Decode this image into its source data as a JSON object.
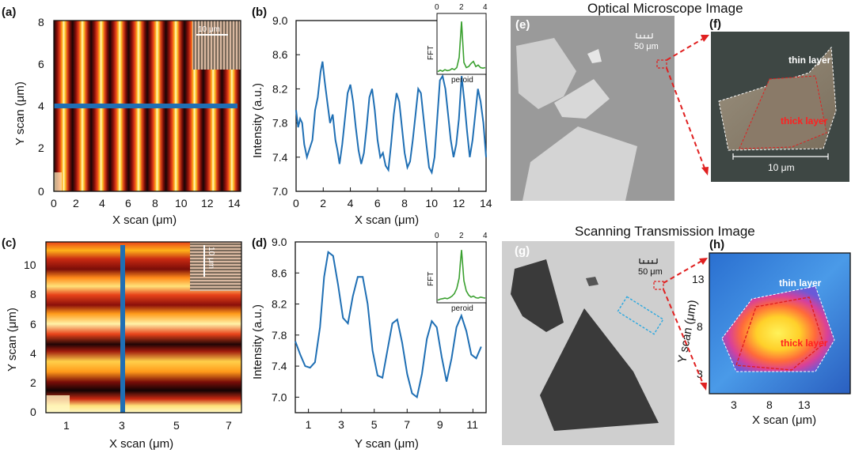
{
  "panels": {
    "a": {
      "label": "(a)",
      "xlabel": "X scan (μm)",
      "ylabel": "Y scan (μm)",
      "xticks": [
        "0",
        "2",
        "4",
        "6",
        "8",
        "10",
        "12",
        "14"
      ],
      "yticks": [
        "0",
        "2",
        "4",
        "6",
        "8"
      ],
      "inset_scale": "10 μm"
    },
    "c": {
      "label": "(c)",
      "xlabel": "X scan (μm)",
      "ylabel": "Y scan (μm)",
      "xticks": [
        "1",
        "3",
        "5",
        "7"
      ],
      "yticks": [
        "0",
        "2",
        "4",
        "6",
        "8",
        "10"
      ],
      "inset_scale": "10 μm"
    },
    "e": {
      "label": "(e)",
      "scale": "50 μm"
    },
    "f": {
      "label": "(f)",
      "thin": "thin layer",
      "thick": "thick layer",
      "scale": "10 μm"
    },
    "g": {
      "label": "(g)",
      "scale": "50 μm"
    },
    "h": {
      "label": "(h)",
      "thin": "thin layer",
      "thick": "thick layer",
      "xlabel": "X scan (μm)",
      "ylabel": "Y scan (μm)",
      "xticks": [
        "3",
        "8",
        "13"
      ],
      "yticks": [
        "3",
        "8",
        "13"
      ]
    }
  },
  "titles": {
    "optical": "Optical Microscope Image",
    "transmission": "Scanning Transmission Image"
  },
  "colors": {
    "line": "#1f6fb4",
    "fft": "#3aa02f",
    "marker": "#1f6fb4",
    "dash": "#e02020"
  },
  "chart_data": [
    {
      "id": "b",
      "label": "(b)",
      "type": "line",
      "xlabel": "X scan (μm)",
      "ylabel": "Intensity (a.u.)",
      "xlim": [
        0,
        14
      ],
      "ylim": [
        7.0,
        9.0
      ],
      "xticks": [
        0,
        2,
        4,
        6,
        8,
        10,
        12,
        14
      ],
      "yticks": [
        7.0,
        7.4,
        7.8,
        8.2,
        8.6,
        9.0
      ],
      "x": [
        0,
        0.15,
        0.3,
        0.45,
        0.6,
        0.8,
        1.0,
        1.2,
        1.4,
        1.6,
        1.8,
        1.95,
        2.1,
        2.3,
        2.5,
        2.7,
        2.9,
        3.05,
        3.2,
        3.4,
        3.6,
        3.8,
        4.0,
        4.2,
        4.4,
        4.6,
        4.8,
        5.0,
        5.2,
        5.4,
        5.6,
        5.8,
        6.0,
        6.2,
        6.4,
        6.6,
        6.8,
        7.0,
        7.2,
        7.4,
        7.6,
        7.8,
        8.0,
        8.2,
        8.4,
        8.6,
        8.8,
        9.0,
        9.2,
        9.4,
        9.6,
        9.8,
        10.0,
        10.2,
        10.4,
        10.6,
        10.8,
        11.0,
        11.2,
        11.4,
        11.6,
        11.8,
        12.0,
        12.2,
        12.4,
        12.6,
        12.8,
        13.0,
        13.2,
        13.4,
        13.6,
        13.8,
        14.0
      ],
      "y": [
        7.95,
        7.75,
        7.85,
        7.8,
        7.55,
        7.4,
        7.5,
        7.6,
        7.95,
        8.1,
        8.4,
        8.52,
        8.3,
        8.05,
        7.8,
        7.9,
        7.6,
        7.48,
        7.32,
        7.55,
        7.85,
        8.15,
        8.25,
        8.05,
        7.75,
        7.48,
        7.32,
        7.45,
        7.75,
        8.1,
        8.2,
        7.95,
        7.6,
        7.4,
        7.45,
        7.3,
        7.25,
        7.55,
        7.9,
        8.15,
        8.05,
        7.75,
        7.45,
        7.28,
        7.35,
        7.6,
        7.9,
        8.2,
        8.15,
        7.85,
        7.55,
        7.28,
        7.22,
        7.4,
        7.85,
        8.3,
        8.35,
        8.2,
        7.9,
        7.6,
        7.4,
        7.55,
        7.85,
        8.35,
        8.05,
        7.7,
        7.4,
        7.6,
        7.9,
        8.2,
        8.05,
        7.8,
        7.4
      ],
      "inset": {
        "xlabel": "peroid",
        "ylabel": "FFT",
        "xticks": [
          "0",
          "2",
          "4"
        ],
        "x": [
          0,
          0.2,
          0.4,
          0.6,
          0.8,
          1.0,
          1.2,
          1.4,
          1.6,
          1.8,
          1.9,
          2.0,
          2.1,
          2.2,
          2.4,
          2.6,
          2.8,
          3.0,
          3.2,
          3.4,
          3.6,
          3.8,
          4.0
        ],
        "y": [
          0.02,
          0.05,
          0.03,
          0.06,
          0.04,
          0.05,
          0.08,
          0.06,
          0.1,
          0.3,
          0.65,
          1.0,
          0.6,
          0.2,
          0.1,
          0.12,
          0.18,
          0.22,
          0.12,
          0.15,
          0.1,
          0.09,
          0.1
        ]
      }
    },
    {
      "id": "d",
      "label": "(d)",
      "type": "line",
      "xlabel": "Y scan (μm)",
      "ylabel": "Intensity (a.u.)",
      "xlim": [
        0.2,
        11.8
      ],
      "ylim": [
        6.8,
        9.0
      ],
      "xticks": [
        1,
        3,
        5,
        7,
        9,
        11
      ],
      "yticks": [
        7.0,
        7.4,
        7.8,
        8.2,
        8.6,
        9.0
      ],
      "x": [
        0.2,
        0.5,
        0.8,
        1.1,
        1.4,
        1.7,
        1.95,
        2.2,
        2.5,
        2.8,
        3.1,
        3.4,
        3.7,
        4.0,
        4.3,
        4.6,
        4.9,
        5.2,
        5.5,
        5.8,
        6.1,
        6.4,
        6.7,
        7.0,
        7.3,
        7.6,
        7.9,
        8.2,
        8.5,
        8.8,
        9.1,
        9.4,
        9.7,
        10.0,
        10.3,
        10.6,
        10.9,
        11.2,
        11.5
      ],
      "y": [
        7.72,
        7.55,
        7.4,
        7.38,
        7.45,
        7.9,
        8.55,
        8.87,
        8.82,
        8.45,
        8.02,
        7.95,
        8.3,
        8.55,
        8.55,
        8.2,
        7.6,
        7.28,
        7.25,
        7.6,
        7.95,
        8.0,
        7.7,
        7.3,
        7.05,
        7.0,
        7.3,
        7.75,
        7.98,
        7.9,
        7.52,
        7.2,
        7.5,
        7.9,
        8.05,
        7.85,
        7.55,
        7.5,
        7.65
      ],
      "inset": {
        "xlabel": "peroid",
        "ylabel": "FFT",
        "xticks": [
          "0",
          "2",
          "4"
        ],
        "x": [
          0,
          0.2,
          0.4,
          0.6,
          0.8,
          1.0,
          1.2,
          1.4,
          1.6,
          1.8,
          1.9,
          2.0,
          2.1,
          2.2,
          2.4,
          2.6,
          2.8,
          3.0,
          3.2,
          3.4,
          3.6,
          3.8,
          4.0
        ],
        "y": [
          0.02,
          0.04,
          0.05,
          0.06,
          0.05,
          0.07,
          0.1,
          0.15,
          0.25,
          0.45,
          0.75,
          1.0,
          0.7,
          0.4,
          0.2,
          0.12,
          0.08,
          0.1,
          0.07,
          0.06,
          0.08,
          0.07,
          0.06
        ]
      }
    }
  ]
}
